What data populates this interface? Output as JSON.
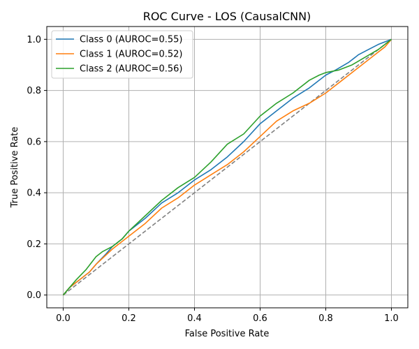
{
  "chart_data": {
    "type": "line",
    "title": "ROC Curve - LOS (CausalCNN)",
    "xlabel": "False Positive Rate",
    "ylabel": "True Positive Rate",
    "xlim": [
      -0.05,
      1.05
    ],
    "ylim": [
      -0.05,
      1.05
    ],
    "xticks": [
      0.0,
      0.2,
      0.4,
      0.6,
      0.8,
      1.0
    ],
    "yticks": [
      0.0,
      0.2,
      0.4,
      0.6,
      0.8,
      1.0
    ],
    "xtick_labels": [
      "0.0",
      "0.2",
      "0.4",
      "0.6",
      "0.8",
      "1.0"
    ],
    "ytick_labels": [
      "0.0",
      "0.2",
      "0.4",
      "0.6",
      "0.8",
      "1.0"
    ],
    "grid": true,
    "legend_position": "upper-left",
    "diagonal": {
      "x": [
        0,
        1
      ],
      "y": [
        0,
        1
      ],
      "color": "#808080",
      "style": "dashed"
    },
    "series": [
      {
        "name": "Class 0 (AUROC=0.55)",
        "color": "#1f77b4",
        "x": [
          0.0,
          0.02,
          0.05,
          0.08,
          0.1,
          0.13,
          0.15,
          0.18,
          0.2,
          0.25,
          0.3,
          0.35,
          0.4,
          0.45,
          0.5,
          0.55,
          0.6,
          0.65,
          0.7,
          0.75,
          0.8,
          0.83,
          0.87,
          0.9,
          0.93,
          0.96,
          1.0
        ],
        "y": [
          0.0,
          0.03,
          0.06,
          0.09,
          0.12,
          0.16,
          0.19,
          0.22,
          0.25,
          0.3,
          0.36,
          0.4,
          0.45,
          0.49,
          0.54,
          0.6,
          0.67,
          0.72,
          0.77,
          0.81,
          0.86,
          0.88,
          0.91,
          0.94,
          0.96,
          0.98,
          1.0
        ]
      },
      {
        "name": "Class 1 (AUROC=0.52)",
        "color": "#ff7f0e",
        "x": [
          0.0,
          0.02,
          0.05,
          0.08,
          0.1,
          0.15,
          0.2,
          0.25,
          0.3,
          0.35,
          0.4,
          0.45,
          0.5,
          0.55,
          0.6,
          0.65,
          0.7,
          0.75,
          0.8,
          0.85,
          0.9,
          0.95,
          0.98,
          1.0
        ],
        "y": [
          0.0,
          0.03,
          0.06,
          0.09,
          0.12,
          0.18,
          0.23,
          0.28,
          0.34,
          0.38,
          0.43,
          0.47,
          0.51,
          0.56,
          0.62,
          0.68,
          0.72,
          0.75,
          0.79,
          0.84,
          0.89,
          0.94,
          0.97,
          1.0
        ]
      },
      {
        "name": "Class 2 (AUROC=0.56)",
        "color": "#2ca02c",
        "x": [
          0.0,
          0.02,
          0.04,
          0.07,
          0.1,
          0.12,
          0.15,
          0.18,
          0.2,
          0.25,
          0.3,
          0.35,
          0.4,
          0.45,
          0.5,
          0.55,
          0.6,
          0.65,
          0.7,
          0.75,
          0.78,
          0.8,
          0.84,
          0.88,
          0.92,
          0.96,
          1.0
        ],
        "y": [
          0.0,
          0.03,
          0.06,
          0.1,
          0.15,
          0.17,
          0.19,
          0.22,
          0.25,
          0.31,
          0.37,
          0.42,
          0.46,
          0.52,
          0.59,
          0.63,
          0.7,
          0.75,
          0.79,
          0.84,
          0.86,
          0.87,
          0.88,
          0.9,
          0.93,
          0.96,
          1.0
        ]
      }
    ]
  }
}
